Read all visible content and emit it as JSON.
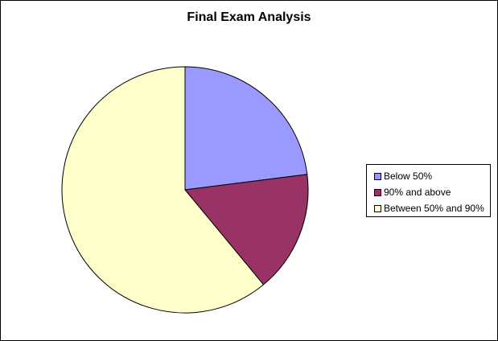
{
  "chart_data": {
    "type": "pie",
    "title": "Final Exam Analysis",
    "categories": [
      "Below 50%",
      "90% and above",
      "Between 50% and 90%"
    ],
    "values": [
      23,
      16,
      61
    ],
    "colors": [
      "#9999ff",
      "#993366",
      "#ffffcc"
    ],
    "legend": "right"
  }
}
